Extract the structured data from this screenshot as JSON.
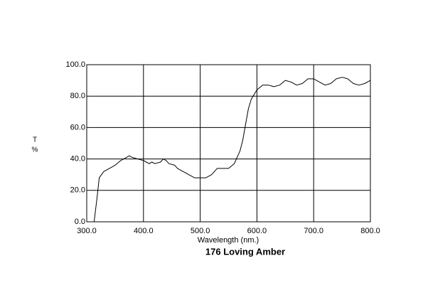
{
  "chart_data": {
    "type": "line",
    "title": "176 Loving Amber",
    "x_label": "Wavelength (nm.)",
    "y_label": "T",
    "y_unit": "%",
    "x": [
      300,
      313,
      318,
      322,
      330,
      340,
      350,
      360,
      370,
      375,
      380,
      390,
      400,
      405,
      410,
      415,
      420,
      430,
      435,
      440,
      445,
      455,
      460,
      470,
      480,
      490,
      500,
      510,
      520,
      530,
      540,
      550,
      560,
      570,
      575,
      580,
      585,
      590,
      600,
      610,
      620,
      630,
      640,
      650,
      660,
      670,
      680,
      690,
      700,
      710,
      720,
      730,
      740,
      750,
      760,
      770,
      780,
      790,
      800
    ],
    "series": [
      {
        "name": "176 Loving Amber",
        "color": "#000000",
        "values": [
          0,
          0,
          15,
          28,
          32,
          34,
          36,
          39,
          41,
          42,
          41,
          40,
          39,
          38,
          37,
          38,
          37,
          38,
          40,
          39,
          37,
          36,
          34,
          32,
          30,
          28,
          28,
          28,
          30,
          34,
          34,
          34,
          37,
          45,
          52,
          62,
          72,
          78,
          84,
          87,
          87,
          86,
          87,
          90,
          89,
          87,
          88,
          91,
          91,
          89,
          87,
          88,
          91,
          92,
          91,
          88,
          87,
          88,
          90
        ]
      }
    ],
    "xlim": [
      300,
      800
    ],
    "ylim": [
      0,
      100
    ],
    "xticks": [
      {
        "value": 300,
        "label": "300.0"
      },
      {
        "value": 400,
        "label": "400.0"
      },
      {
        "value": 500,
        "label": "500.0"
      },
      {
        "value": 600,
        "label": "600.0"
      },
      {
        "value": 700,
        "label": "700.0"
      },
      {
        "value": 800,
        "label": "800.0"
      }
    ],
    "yticks": [
      {
        "value": 0,
        "label": "0.0"
      },
      {
        "value": 20,
        "label": "20.0"
      },
      {
        "value": 40,
        "label": "40.0"
      },
      {
        "value": 60,
        "label": "60.0"
      },
      {
        "value": 80,
        "label": "80.0"
      },
      {
        "value": 100,
        "label": "100.0"
      }
    ],
    "grid": true
  }
}
